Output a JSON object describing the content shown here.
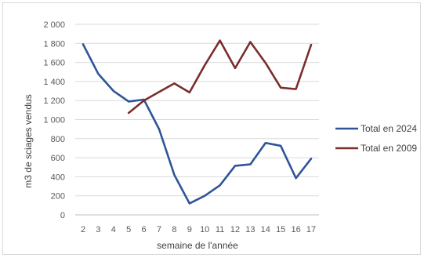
{
  "chart_data": {
    "type": "line",
    "title": "",
    "xlabel": "semaine de l'année",
    "ylabel": "m3 de sciages vendus",
    "x": [
      2,
      3,
      4,
      5,
      6,
      7,
      8,
      9,
      10,
      11,
      12,
      13,
      14,
      15,
      16,
      17
    ],
    "ylim": [
      0,
      2000
    ],
    "yticks": [
      0,
      200,
      400,
      600,
      800,
      1000,
      1200,
      1400,
      1600,
      1800,
      2000
    ],
    "ytick_labels": [
      "0",
      "200",
      "400",
      "600",
      "800",
      "1 000",
      "1 200",
      "1 400",
      "1 600",
      "1 800",
      "2 000"
    ],
    "grid": "horizontal",
    "legend_position": "right",
    "series": [
      {
        "name": "Total en 2024",
        "color": "#2f5597",
        "values": [
          1790,
          1480,
          1300,
          1190,
          1210,
          900,
          420,
          120,
          200,
          310,
          515,
          530,
          755,
          725,
          385,
          590
        ]
      },
      {
        "name": "Total en 2009",
        "color": "#7b2c2c",
        "values": [
          null,
          null,
          null,
          1070,
          1200,
          1290,
          1380,
          1285,
          1570,
          1830,
          1540,
          1815,
          1595,
          1335,
          1320,
          1785
        ]
      }
    ]
  }
}
